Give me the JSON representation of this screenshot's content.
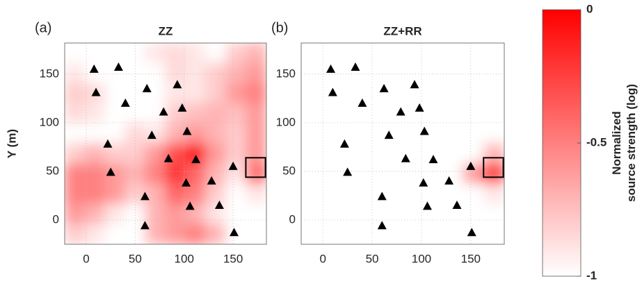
{
  "chart_data": [
    {
      "type": "heatmap",
      "panel_label": "(a)",
      "title": "ZZ",
      "ylabel": "Y (m)",
      "xlim": [
        -22,
        184
      ],
      "ylim": [
        -25,
        182
      ],
      "xticks": [
        0,
        50,
        100,
        150
      ],
      "yticks": [
        0,
        50,
        100,
        150
      ],
      "grid": true,
      "z": [
        [
          -1,
          -1,
          -1,
          -1,
          -0.9,
          -0.85,
          -0.9,
          -1,
          -0.8,
          -0.7
        ],
        [
          -0.9,
          -1,
          -1,
          -1,
          -1,
          -0.85,
          -0.9,
          -0.8,
          -0.7,
          -0.6
        ],
        [
          -0.8,
          -0.85,
          -1,
          -1,
          -1,
          -0.9,
          -0.9,
          -0.8,
          -0.6,
          -0.5
        ],
        [
          -0.85,
          -0.9,
          -1,
          -1,
          -1,
          -0.8,
          -0.75,
          -0.7,
          -0.75,
          -0.6
        ],
        [
          -1,
          -1,
          -1,
          -0.85,
          -0.9,
          -0.7,
          -0.6,
          -0.7,
          -0.8,
          -0.6
        ],
        [
          -0.8,
          -0.7,
          -0.8,
          -0.8,
          -0.6,
          -0.3,
          -0.1,
          -0.6,
          -0.8,
          -0.6
        ],
        [
          -0.5,
          -0.5,
          -0.6,
          -0.7,
          -0.5,
          -0.2,
          -0.4,
          -0.7,
          -0.9,
          -0.4
        ],
        [
          -0.5,
          -0.5,
          -0.6,
          -0.8,
          -0.7,
          -0.4,
          -0.5,
          -0.8,
          -1,
          -0.9
        ],
        [
          -0.6,
          -0.7,
          -0.9,
          -1,
          -0.7,
          -0.6,
          -0.7,
          -0.9,
          -1,
          -1
        ],
        [
          -0.8,
          -0.9,
          -1,
          -1,
          -0.7,
          -0.6,
          -0.5,
          -0.7,
          -1,
          -1
        ]
      ],
      "stations": {
        "x": [
          8,
          33,
          10,
          40,
          62,
          93,
          98,
          79,
          103,
          67,
          22,
          25,
          84,
          112,
          102,
          128,
          150,
          60,
          106,
          136,
          60,
          151
        ],
        "y": [
          155,
          157,
          131,
          120,
          135,
          139,
          115,
          111,
          91,
          87,
          78,
          49,
          63,
          62,
          38,
          40,
          55,
          24,
          14,
          15,
          -6,
          -13
        ]
      },
      "box": {
        "x": [
          163,
          183
        ],
        "y": [
          44,
          64
        ]
      }
    },
    {
      "type": "heatmap",
      "panel_label": "(b)",
      "title": "ZZ+RR",
      "xlim": [
        -22,
        184
      ],
      "ylim": [
        -25,
        182
      ],
      "xticks": [
        0,
        50,
        100,
        150
      ],
      "yticks": [
        0,
        50,
        100,
        150
      ],
      "grid": true,
      "z": [
        [
          -1,
          -1,
          -1,
          -1,
          -1,
          -1,
          -1,
          -1,
          -1,
          -1
        ],
        [
          -1,
          -1,
          -1,
          -1,
          -1,
          -1,
          -1,
          -1,
          -1,
          -1
        ],
        [
          -1,
          -1,
          -1,
          -1,
          -1,
          -1,
          -1,
          -1,
          -1,
          -1
        ],
        [
          -1,
          -1,
          -1,
          -1,
          -1,
          -1,
          -1,
          -1,
          -1,
          -1
        ],
        [
          -1,
          -1,
          -1,
          -1,
          -1,
          -1,
          -1,
          -1,
          -1,
          -1
        ],
        [
          -1,
          -1,
          -1,
          -1,
          -1,
          -1,
          -1,
          -1,
          -1,
          -0.7
        ],
        [
          -1,
          -1,
          -1,
          -1,
          -1,
          -1,
          -1,
          -1,
          -0.6,
          -0.2
        ],
        [
          -1,
          -1,
          -1,
          -1,
          -1,
          -1,
          -1,
          -1,
          -1,
          -0.9
        ],
        [
          -1,
          -1,
          -1,
          -1,
          -1,
          -1,
          -1,
          -1,
          -1,
          -1
        ],
        [
          -1,
          -1,
          -1,
          -1,
          -1,
          -1,
          -1,
          -1,
          -1,
          -1
        ]
      ],
      "stations": {
        "x": [
          8,
          33,
          10,
          40,
          62,
          93,
          98,
          79,
          103,
          67,
          22,
          25,
          84,
          112,
          102,
          128,
          150,
          60,
          106,
          136,
          60,
          151
        ],
        "y": [
          155,
          157,
          131,
          120,
          135,
          139,
          115,
          111,
          91,
          87,
          78,
          49,
          63,
          62,
          38,
          40,
          55,
          24,
          14,
          15,
          -6,
          -13
        ]
      },
      "box": {
        "x": [
          163,
          183
        ],
        "y": [
          44,
          64
        ]
      }
    }
  ],
  "colorbar": {
    "label": "Normalized source strength (log)",
    "zlim": [
      -1,
      0
    ],
    "ticks": [
      0,
      -0.5,
      -1
    ]
  }
}
